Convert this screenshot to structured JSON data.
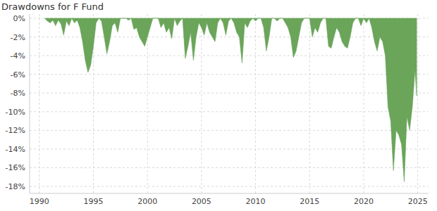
{
  "chart_data": {
    "type": "area",
    "title": "Drawdowns for F Fund",
    "color": "#6aa55a",
    "grid": true,
    "x": [
      1990.5,
      1990.75,
      1991,
      1991.25,
      1991.5,
      1991.75,
      1992,
      1992.25,
      1992.5,
      1992.75,
      1993,
      1993.25,
      1993.5,
      1993.75,
      1994,
      1994.25,
      1994.5,
      1994.75,
      1995,
      1995.25,
      1995.5,
      1995.75,
      1996,
      1996.25,
      1996.5,
      1996.75,
      1997,
      1997.25,
      1997.5,
      1997.75,
      1998,
      1998.25,
      1998.5,
      1998.75,
      1999,
      1999.25,
      1999.5,
      1999.75,
      2000,
      2000.25,
      2000.5,
      2000.75,
      2001,
      2001.25,
      2001.5,
      2001.75,
      2002,
      2002.25,
      2002.5,
      2002.75,
      2003,
      2003.25,
      2003.5,
      2003.75,
      2004,
      2004.25,
      2004.5,
      2004.75,
      2005,
      2005.25,
      2005.5,
      2005.75,
      2006,
      2006.25,
      2006.5,
      2006.75,
      2007,
      2007.25,
      2007.5,
      2007.75,
      2008,
      2008.25,
      2008.5,
      2008.75,
      2009,
      2009.25,
      2009.5,
      2009.75,
      2010,
      2010.25,
      2010.5,
      2010.75,
      2011,
      2011.25,
      2011.5,
      2011.75,
      2012,
      2012.25,
      2012.5,
      2012.75,
      2013,
      2013.25,
      2013.5,
      2013.75,
      2014,
      2014.25,
      2014.5,
      2014.75,
      2015,
      2015.25,
      2015.5,
      2015.75,
      2016,
      2016.25,
      2016.5,
      2016.75,
      2017,
      2017.25,
      2017.5,
      2017.75,
      2018,
      2018.25,
      2018.5,
      2018.75,
      2019,
      2019.25,
      2019.5,
      2019.75,
      2020,
      2020.25,
      2020.5,
      2020.75,
      2021,
      2021.25,
      2021.5,
      2021.75,
      2022,
      2022.25,
      2022.5,
      2022.75,
      2023,
      2023.25,
      2023.5,
      2023.75,
      2024,
      2024.25,
      2024.5,
      2024.75,
      2024.9
    ],
    "values": [
      0,
      -0.3,
      -0.5,
      -0.2,
      -0.8,
      -0.2,
      -0.6,
      -1.8,
      -0.3,
      -0.8,
      0,
      -0.5,
      -0.2,
      -1.0,
      -2.5,
      -4.5,
      -5.8,
      -5.0,
      -3.0,
      -0.5,
      0,
      -0.3,
      -2.0,
      -3.8,
      -2.5,
      -0.8,
      -0.5,
      -1.5,
      0,
      0,
      0,
      -0.2,
      0,
      -1.2,
      -1.0,
      -2.0,
      -2.5,
      -3.0,
      -2.0,
      -1.0,
      0,
      0,
      0,
      -1.0,
      -0.5,
      -1.5,
      -1.0,
      -2.2,
      0,
      -0.8,
      -0.3,
      0,
      -4.3,
      -3.0,
      -1.5,
      -4.5,
      -2.0,
      -0.5,
      -1.0,
      -1.8,
      -0.5,
      -1.5,
      -2.0,
      -2.5,
      -0.5,
      0,
      -0.5,
      -1.8,
      -0.3,
      0,
      -0.5,
      -1.5,
      -2.0,
      -4.8,
      -0.5,
      -1.0,
      -0.3,
      0,
      -0.3,
      0,
      0,
      -1.0,
      -3.5,
      -2.0,
      0,
      0,
      -0.3,
      0,
      0,
      -0.5,
      -1.0,
      -2.0,
      -4.2,
      -3.5,
      -2.0,
      -0.5,
      0,
      0,
      0,
      -2.0,
      -1.0,
      -1.5,
      -0.5,
      0,
      0,
      -3.0,
      -3.2,
      -2.0,
      -1.0,
      -1.5,
      -2.5,
      -3.0,
      -3.2,
      -2.0,
      -0.5,
      0,
      0,
      -0.8,
      0,
      -0.5,
      0,
      -1.0,
      -2.5,
      -3.5,
      -2.0,
      -2.5,
      -4.0,
      -9.5,
      -11.0,
      -16.3,
      -12.0,
      -12.5,
      -13.5,
      -17.5,
      -10.5,
      -12.0,
      -9.5,
      -5.5,
      -8.3
    ],
    "xlim": [
      1989.1,
      2026
    ],
    "xticks": [
      1990,
      1995,
      2000,
      2005,
      2010,
      2015,
      2020,
      2025
    ],
    "ylim": [
      -18.75,
      0.45
    ],
    "yticks": [
      {
        "value": 0,
        "label": "0%"
      },
      {
        "value": -2,
        "label": "-2%"
      },
      {
        "value": -4,
        "label": "-4%"
      },
      {
        "value": -6,
        "label": "-6%"
      },
      {
        "value": -8,
        "label": "-8%"
      },
      {
        "value": -10,
        "label": "-10%"
      },
      {
        "value": -12,
        "label": "-12%"
      },
      {
        "value": -14,
        "label": "-14%"
      },
      {
        "value": -16,
        "label": "-16%"
      },
      {
        "value": -18,
        "label": "-18%"
      }
    ]
  }
}
